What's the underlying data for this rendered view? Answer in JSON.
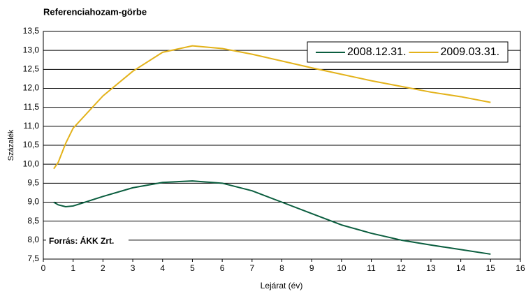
{
  "chart_data": {
    "type": "line",
    "title": "Referenciahozam-görbe",
    "xlabel": "Lejárat (év)",
    "ylabel": "Százalék",
    "annotation": "Forrás:  ÁKK Zrt.",
    "x": [
      0.35,
      0.5,
      0.75,
      1,
      2,
      3,
      4,
      5,
      6,
      7,
      8,
      9,
      10,
      11,
      12,
      13,
      14,
      15
    ],
    "series": [
      {
        "name": "2008.12.31.",
        "color": "#0b5e3f",
        "values": [
          9.0,
          8.93,
          8.88,
          8.9,
          9.15,
          9.38,
          9.52,
          9.56,
          9.5,
          9.3,
          9.0,
          8.7,
          8.4,
          8.18,
          8.0,
          7.87,
          7.75,
          7.63
        ]
      },
      {
        "name": "2009.03.31.",
        "color": "#e3b21a",
        "values": [
          9.88,
          10.05,
          10.55,
          10.95,
          11.8,
          12.45,
          12.95,
          13.12,
          13.05,
          12.9,
          12.72,
          12.54,
          12.37,
          12.2,
          12.05,
          11.9,
          11.78,
          11.63
        ]
      }
    ],
    "xlim": [
      0,
      16
    ],
    "xticks": [
      0,
      1,
      2,
      3,
      4,
      5,
      6,
      7,
      8,
      9,
      10,
      11,
      12,
      13,
      14,
      15,
      16
    ],
    "ylim": [
      7.5,
      13.5
    ],
    "yticks": [
      {
        "value": 7.5,
        "label": "7,5"
      },
      {
        "value": 8.0,
        "label": "8,0"
      },
      {
        "value": 8.5,
        "label": "8,5"
      },
      {
        "value": 9.0,
        "label": "9,0"
      },
      {
        "value": 9.5,
        "label": "9,5"
      },
      {
        "value": 10.0,
        "label": "10,0"
      },
      {
        "value": 10.5,
        "label": "10,5"
      },
      {
        "value": 11.0,
        "label": "11,0"
      },
      {
        "value": 11.5,
        "label": "11,5"
      },
      {
        "value": 12.0,
        "label": "12,0"
      },
      {
        "value": 12.5,
        "label": "12,5"
      },
      {
        "value": 13.0,
        "label": "13,0"
      },
      {
        "value": 13.5,
        "label": "13,5"
      }
    ],
    "grid": true,
    "legend": "top-right"
  }
}
